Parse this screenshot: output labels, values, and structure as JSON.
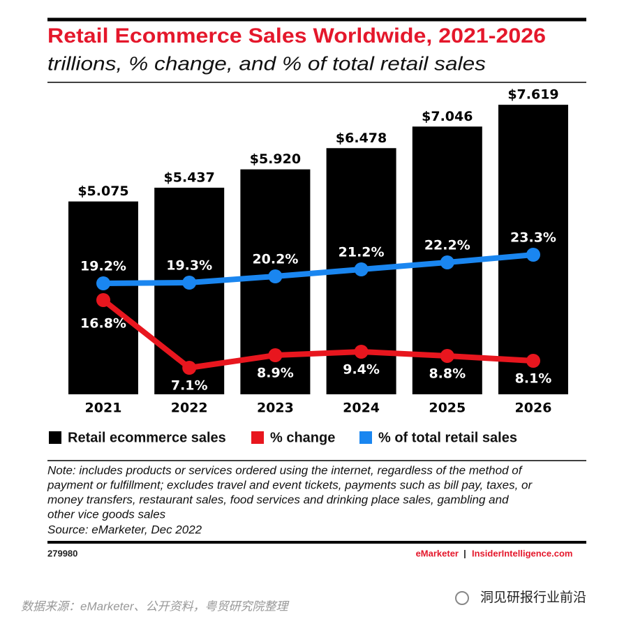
{
  "chart_data": {
    "type": "bar",
    "title": "Retail Ecommerce Sales Worldwide, 2021-2026",
    "subtitle": "trillions, % change, and % of total retail sales",
    "categories": [
      "2021",
      "2022",
      "2023",
      "2024",
      "2025",
      "2026"
    ],
    "series": [
      {
        "name": "Retail ecommerce sales",
        "type": "bar",
        "color": "#000000",
        "values": [
          5.075,
          5.437,
          5.92,
          6.478,
          7.046,
          7.619
        ],
        "value_labels": [
          "$5.075",
          "$5.437",
          "$5.920",
          "$6.478",
          "$7.046",
          "$7.619"
        ]
      },
      {
        "name": "% change",
        "type": "line",
        "color": "#e8161e",
        "values": [
          16.8,
          7.1,
          8.9,
          9.4,
          8.8,
          8.1
        ],
        "value_labels": [
          "16.8%",
          "7.1%",
          "8.9%",
          "9.4%",
          "8.8%",
          "8.1%"
        ]
      },
      {
        "name": "% of total retail sales",
        "type": "line",
        "color": "#1a86f0",
        "values": [
          19.2,
          19.3,
          20.2,
          21.2,
          22.2,
          23.3
        ],
        "value_labels": [
          "19.2%",
          "19.3%",
          "20.2%",
          "21.2%",
          "22.2%",
          "23.3%"
        ]
      }
    ],
    "note": [
      "Note: includes products or services ordered using the internet, regardless of the method of",
      "payment or fulfillment; excludes travel and event tickets, payments such as bill pay, taxes, or",
      "money transfers, restaurant sales, food services and drinking place sales, gambling and",
      "other vice goods sales"
    ],
    "source": "Source: eMarketer, Dec 2022",
    "chart_id": "279980",
    "brand": "eMarketer",
    "separator": "|",
    "site": "InsiderIntelligence.com"
  },
  "caption": "数据来源：eMarketer、公开资料，粤贸研究院整理",
  "account": "洞见研报行业前沿"
}
